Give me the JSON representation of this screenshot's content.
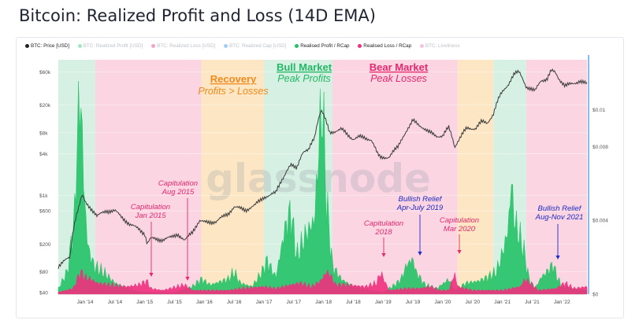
{
  "page": {
    "title": "Bitcoin: Realized Profit and Loss (14D EMA)"
  },
  "legend": [
    {
      "label": "BTC: Price [USD]",
      "color": "#222222",
      "active": true
    },
    {
      "label": "BTC: Realized Profit [USD]",
      "color": "#2ecc71",
      "active": false
    },
    {
      "label": "BTC: Realized Loss [USD]",
      "color": "#f0307d",
      "active": false
    },
    {
      "label": "BTC: Realized Cap [USD]",
      "color": "#2d8fe8",
      "active": false
    },
    {
      "label": "Realised Profit / RCap",
      "color": "#23c266",
      "active": true
    },
    {
      "label": "Realised Loss / RCap",
      "color": "#f0307d",
      "active": true
    },
    {
      "label": "BTC: Liveliness",
      "color": "#e77fc0",
      "active": false
    }
  ],
  "watermark": "glassnode",
  "chart_data": {
    "type": "area",
    "title": "Bitcoin: Realized Profit and Loss (14D EMA)",
    "x_ticks": [
      "Jan '14",
      "Jul '14",
      "Jan '15",
      "Jul '15",
      "Jan '16",
      "Jul '16",
      "Jan '17",
      "Jul '17",
      "Jan '18",
      "Jul '18",
      "Jan '19",
      "Jul '19",
      "Jan '20",
      "Jul '20",
      "Jan '21",
      "Jul '21",
      "Jan '22"
    ],
    "x_range": [
      2013.55,
      2022.42
    ],
    "left_axis": {
      "scale": "log",
      "ticks": [
        "$40",
        "$80",
        "$200",
        "$600",
        "$1k",
        "$4k",
        "$8k",
        "$20k",
        "$60k"
      ],
      "tick_values": [
        40,
        80,
        200,
        600,
        1000,
        4000,
        8000,
        20000,
        60000
      ],
      "range": [
        38,
        90000
      ]
    },
    "right_axis": {
      "scale": "linear",
      "ticks": [
        "$0",
        "$0.004",
        "$0.008",
        "$0.01"
      ],
      "tick_values": [
        0,
        0.004,
        0.008,
        0.01
      ],
      "range": [
        0,
        0.0127
      ]
    },
    "series": [
      {
        "name": "BTC: Price [USD]",
        "axis": "left",
        "color": "#3a3a3a",
        "points": [
          [
            2013.55,
            95
          ],
          [
            2013.75,
            130
          ],
          [
            2013.9,
            700
          ],
          [
            2013.95,
            1000
          ],
          [
            2014.0,
            800
          ],
          [
            2014.1,
            650
          ],
          [
            2014.2,
            500
          ],
          [
            2014.35,
            600
          ],
          [
            2014.5,
            600
          ],
          [
            2014.6,
            500
          ],
          [
            2014.75,
            380
          ],
          [
            2014.9,
            330
          ],
          [
            2015.0,
            280
          ],
          [
            2015.04,
            200
          ],
          [
            2015.1,
            240
          ],
          [
            2015.3,
            230
          ],
          [
            2015.45,
            250
          ],
          [
            2015.55,
            280
          ],
          [
            2015.67,
            220
          ],
          [
            2015.8,
            300
          ],
          [
            2015.92,
            430
          ],
          [
            2016.0,
            410
          ],
          [
            2016.2,
            420
          ],
          [
            2016.4,
            550
          ],
          [
            2016.5,
            680
          ],
          [
            2016.7,
            620
          ],
          [
            2016.85,
            720
          ],
          [
            2017.0,
            950
          ],
          [
            2017.1,
            1000
          ],
          [
            2017.2,
            1100
          ],
          [
            2017.35,
            2000
          ],
          [
            2017.45,
            2700
          ],
          [
            2017.55,
            2500
          ],
          [
            2017.65,
            4200
          ],
          [
            2017.75,
            4400
          ],
          [
            2017.85,
            7000
          ],
          [
            2017.96,
            17000
          ],
          [
            2018.05,
            11000
          ],
          [
            2018.1,
            8000
          ],
          [
            2018.3,
            9000
          ],
          [
            2018.4,
            7500
          ],
          [
            2018.5,
            6500
          ],
          [
            2018.6,
            7000
          ],
          [
            2018.8,
            6400
          ],
          [
            2018.9,
            4000
          ],
          [
            2018.95,
            3500
          ],
          [
            2019.1,
            3600
          ],
          [
            2019.25,
            5000
          ],
          [
            2019.45,
            10000
          ],
          [
            2019.5,
            12000
          ],
          [
            2019.6,
            10500
          ],
          [
            2019.75,
            8300
          ],
          [
            2019.9,
            7200
          ],
          [
            2020.0,
            7200
          ],
          [
            2020.1,
            9500
          ],
          [
            2020.2,
            5000
          ],
          [
            2020.3,
            7000
          ],
          [
            2020.4,
            9200
          ],
          [
            2020.55,
            9300
          ],
          [
            2020.65,
            11500
          ],
          [
            2020.75,
            11000
          ],
          [
            2020.85,
            15000
          ],
          [
            2020.97,
            28000
          ],
          [
            2021.1,
            40000
          ],
          [
            2021.2,
            56000
          ],
          [
            2021.28,
            60000
          ],
          [
            2021.4,
            37000
          ],
          [
            2021.5,
            33000
          ],
          [
            2021.55,
            32000
          ],
          [
            2021.65,
            46000
          ],
          [
            2021.75,
            47000
          ],
          [
            2021.82,
            62000
          ],
          [
            2021.88,
            60000
          ],
          [
            2021.95,
            48000
          ],
          [
            2022.05,
            38000
          ],
          [
            2022.2,
            41000
          ],
          [
            2022.3,
            45000
          ],
          [
            2022.42,
            40000
          ]
        ]
      },
      {
        "name": "Realised Profit / RCap",
        "axis": "right",
        "color": "#23c266",
        "points": [
          [
            2013.55,
            0.0003
          ],
          [
            2013.7,
            0.0012
          ],
          [
            2013.82,
            0.004
          ],
          [
            2013.88,
            0.0095
          ],
          [
            2013.93,
            0.0105
          ],
          [
            2013.98,
            0.0055
          ],
          [
            2014.05,
            0.0025
          ],
          [
            2014.15,
            0.0015
          ],
          [
            2014.3,
            0.0012
          ],
          [
            2014.5,
            0.0006
          ],
          [
            2014.8,
            0.0002
          ],
          [
            2015.0,
            0.0001
          ],
          [
            2015.5,
            0.0001
          ],
          [
            2015.8,
            0.0004
          ],
          [
            2015.95,
            0.0008
          ],
          [
            2016.1,
            0.0005
          ],
          [
            2016.4,
            0.0008
          ],
          [
            2016.5,
            0.0012
          ],
          [
            2016.6,
            0.0006
          ],
          [
            2016.8,
            0.0004
          ],
          [
            2016.97,
            0.0012
          ],
          [
            2017.05,
            0.0018
          ],
          [
            2017.2,
            0.0009
          ],
          [
            2017.35,
            0.0035
          ],
          [
            2017.45,
            0.0045
          ],
          [
            2017.55,
            0.002
          ],
          [
            2017.7,
            0.0032
          ],
          [
            2017.85,
            0.004
          ],
          [
            2017.93,
            0.0085
          ],
          [
            2017.98,
            0.0105
          ],
          [
            2018.05,
            0.005
          ],
          [
            2018.15,
            0.0015
          ],
          [
            2018.3,
            0.0008
          ],
          [
            2018.5,
            0.0004
          ],
          [
            2018.8,
            0.0002
          ],
          [
            2019.0,
            0.0001
          ],
          [
            2019.2,
            0.0005
          ],
          [
            2019.3,
            0.0008
          ],
          [
            2019.4,
            0.0016
          ],
          [
            2019.5,
            0.0019
          ],
          [
            2019.55,
            0.0012
          ],
          [
            2019.7,
            0.0005
          ],
          [
            2019.9,
            0.0003
          ],
          [
            2020.1,
            0.0008
          ],
          [
            2020.2,
            0.0002
          ],
          [
            2020.4,
            0.0006
          ],
          [
            2020.6,
            0.0007
          ],
          [
            2020.75,
            0.0009
          ],
          [
            2020.9,
            0.0012
          ],
          [
            2021.0,
            0.0022
          ],
          [
            2021.1,
            0.0035
          ],
          [
            2021.15,
            0.0062
          ],
          [
            2021.2,
            0.004
          ],
          [
            2021.28,
            0.0032
          ],
          [
            2021.35,
            0.0025
          ],
          [
            2021.45,
            0.0008
          ],
          [
            2021.55,
            0.0003
          ],
          [
            2021.65,
            0.0009
          ],
          [
            2021.78,
            0.0013
          ],
          [
            2021.85,
            0.0016
          ],
          [
            2021.92,
            0.0009
          ],
          [
            2022.0,
            0.0004
          ],
          [
            2022.2,
            0.0003
          ],
          [
            2022.42,
            0.0002
          ]
        ]
      },
      {
        "name": "Realised Loss / RCap",
        "axis": "right",
        "color": "#f0307d",
        "points": [
          [
            2013.55,
            0.0001
          ],
          [
            2013.8,
            0.0003
          ],
          [
            2013.92,
            0.0012
          ],
          [
            2014.0,
            0.0009
          ],
          [
            2014.1,
            0.0008
          ],
          [
            2014.2,
            0.0006
          ],
          [
            2014.4,
            0.0005
          ],
          [
            2014.7,
            0.0004
          ],
          [
            2014.9,
            0.0005
          ],
          [
            2015.04,
            0.0007
          ],
          [
            2015.1,
            0.0003
          ],
          [
            2015.3,
            0.0002
          ],
          [
            2015.67,
            0.0005
          ],
          [
            2015.8,
            0.0002
          ],
          [
            2016.0,
            0.0002
          ],
          [
            2016.4,
            0.0002
          ],
          [
            2016.6,
            0.0003
          ],
          [
            2017.0,
            0.0004
          ],
          [
            2017.2,
            0.0003
          ],
          [
            2017.45,
            0.0005
          ],
          [
            2017.6,
            0.0006
          ],
          [
            2017.8,
            0.0004
          ],
          [
            2017.95,
            0.0007
          ],
          [
            2018.05,
            0.0012
          ],
          [
            2018.1,
            0.0011
          ],
          [
            2018.2,
            0.0005
          ],
          [
            2018.4,
            0.0005
          ],
          [
            2018.7,
            0.0004
          ],
          [
            2018.9,
            0.0006
          ],
          [
            2018.95,
            0.0012
          ],
          [
            2019.1,
            0.0002
          ],
          [
            2019.4,
            0.0003
          ],
          [
            2019.6,
            0.0003
          ],
          [
            2019.8,
            0.0004
          ],
          [
            2019.95,
            0.0002
          ],
          [
            2020.1,
            0.0002
          ],
          [
            2020.2,
            0.0011
          ],
          [
            2020.25,
            0.0004
          ],
          [
            2020.5,
            0.0002
          ],
          [
            2021.0,
            0.0002
          ],
          [
            2021.3,
            0.0004
          ],
          [
            2021.38,
            0.0008
          ],
          [
            2021.5,
            0.0005
          ],
          [
            2021.6,
            0.0002
          ],
          [
            2021.9,
            0.0003
          ],
          [
            2022.05,
            0.0006
          ],
          [
            2022.2,
            0.0003
          ],
          [
            2022.42,
            0.0004
          ]
        ]
      }
    ],
    "regions": [
      {
        "phase": "bull",
        "from": 2013.55,
        "to": 2014.17
      },
      {
        "phase": "bear",
        "from": 2014.17,
        "to": 2015.95
      },
      {
        "phase": "recovery",
        "from": 2015.95,
        "to": 2017.0
      },
      {
        "phase": "bull",
        "from": 2017.0,
        "to": 2018.15
      },
      {
        "phase": "bear",
        "from": 2018.15,
        "to": 2020.25
      },
      {
        "phase": "recovery",
        "from": 2020.25,
        "to": 2020.85
      },
      {
        "phase": "bull",
        "from": 2020.85,
        "to": 2021.4
      },
      {
        "phase": "bear",
        "from": 2021.4,
        "to": 2022.42
      }
    ],
    "phase_colors": {
      "bull": "#d6f0e3",
      "bear": "#fbd5e2",
      "recovery": "#fde6c4"
    },
    "annotations": [
      {
        "id": "recovery",
        "lines": [
          "Recovery",
          "Profits > Losses"
        ],
        "color": "#f08a1c"
      },
      {
        "id": "bull",
        "lines": [
          "Bull Market",
          "Peak Profits"
        ],
        "color": "#23b864"
      },
      {
        "id": "bear",
        "lines": [
          "Bear Market",
          "Peak Losses"
        ],
        "color": "#e6286e"
      },
      {
        "id": "cap2015jan",
        "lines": [
          "Capitulation",
          "Jan 2015"
        ],
        "color": "#e6286e",
        "date": 2015.04
      },
      {
        "id": "cap2015aug",
        "lines": [
          "Capitulation",
          "Aug 2015"
        ],
        "color": "#e6286e",
        "date": 2015.63
      },
      {
        "id": "cap2018",
        "lines": [
          "Capitulation",
          "2018"
        ],
        "color": "#e6286e",
        "date": 2018.95
      },
      {
        "id": "relief2019",
        "lines": [
          "Bullish Relief",
          "Apr-July 2019"
        ],
        "color": "#1c2cc8",
        "date": 2019.5
      },
      {
        "id": "cap2020",
        "lines": [
          "Capitulation",
          "Mar 2020"
        ],
        "color": "#e6286e",
        "date": 2020.2
      },
      {
        "id": "relief2021",
        "lines": [
          "Bullish Relief",
          "Aug-Nov 2021"
        ],
        "color": "#1c2cc8",
        "date": 2021.85
      }
    ]
  }
}
